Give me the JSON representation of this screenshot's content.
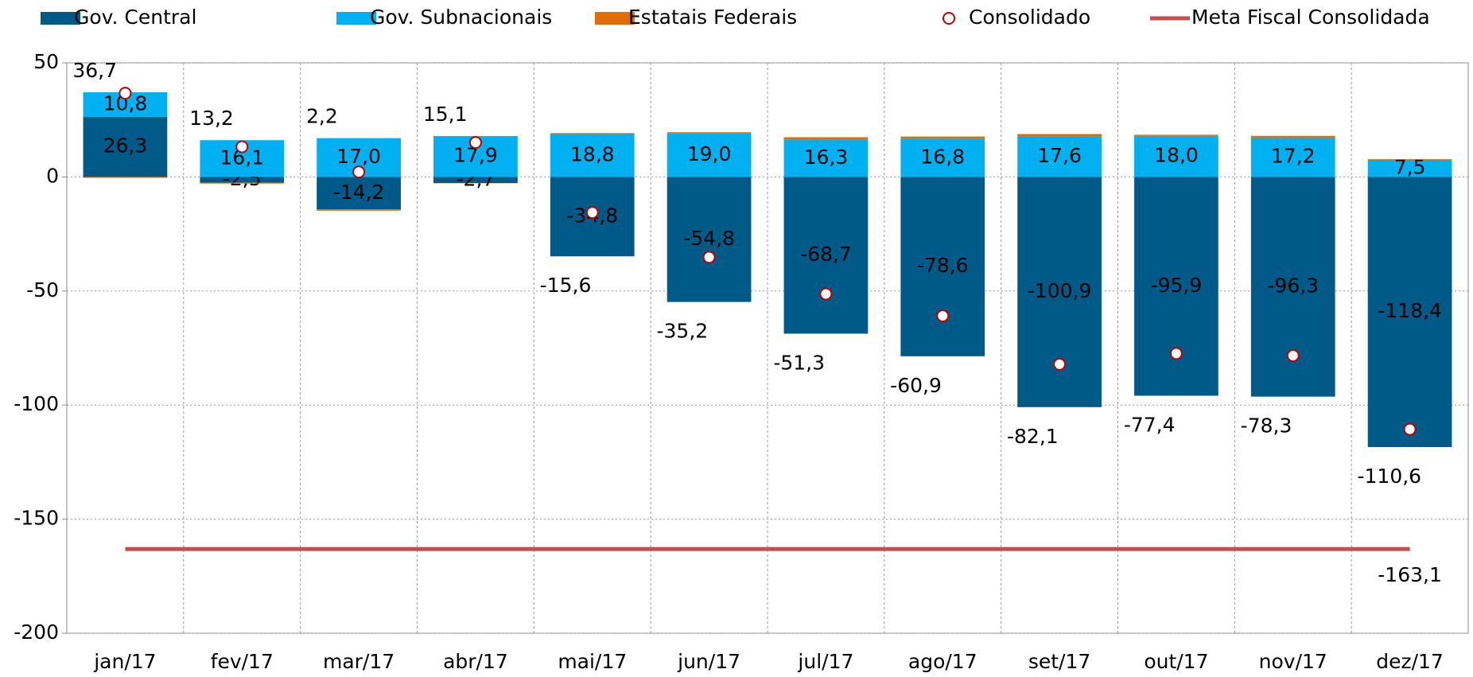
{
  "chart_data": {
    "type": "stacked-bar",
    "categories": [
      "jan/17",
      "fev/17",
      "mar/17",
      "abr/17",
      "mai/17",
      "jun/17",
      "jul/17",
      "ago/17",
      "set/17",
      "out/17",
      "nov/17",
      "dez/17"
    ],
    "series": [
      {
        "name": "Gov. Central",
        "color": "#005a87",
        "values": [
          26.3,
          -2.5,
          -14.2,
          -2.7,
          -34.8,
          -54.8,
          -68.7,
          -78.6,
          -100.9,
          -95.9,
          -96.3,
          -118.4
        ],
        "value_labels": [
          "26,3",
          "-2,5",
          "-14,2",
          "-2,7",
          "-34,8",
          "-54,8",
          "-68,7",
          "-78,6",
          "-100,9",
          "-95,9",
          "-96,3",
          "-118,4"
        ]
      },
      {
        "name": "Gov. Subnacionais",
        "color": "#00b0f0",
        "values": [
          10.8,
          16.1,
          17.0,
          17.9,
          18.8,
          19.0,
          16.3,
          16.8,
          17.6,
          18.0,
          17.2,
          7.5
        ],
        "value_labels": [
          "10,8",
          "16,1",
          "17,0",
          "17,9",
          "18,8",
          "19,0",
          "16,3",
          "16,8",
          "17,6",
          "18,0",
          "17,2",
          "7,5"
        ]
      },
      {
        "name": "Estatais Federais",
        "color": "#e36c09",
        "values": [
          -0.4,
          -0.4,
          -0.6,
          -0.1,
          0.4,
          0.6,
          1.1,
          0.9,
          1.2,
          0.5,
          0.8,
          0.3
        ]
      },
      {
        "name": "Consolidado",
        "type": "scatter",
        "color": "#c00000",
        "values": [
          36.7,
          13.2,
          2.2,
          15.1,
          -15.6,
          -35.2,
          -51.3,
          -60.9,
          -82.1,
          -77.4,
          -78.3,
          -110.6
        ],
        "value_labels": [
          "36,7",
          "13,2",
          "2,2",
          "15,1",
          "-15,6",
          "-35,2",
          "-51,3",
          "-60,9",
          "-82,1",
          "-77,4",
          "-78,3",
          "-110,6"
        ]
      },
      {
        "name": "Meta Fiscal Consolidada",
        "type": "hline",
        "color": "#c0504d",
        "value": -163.1,
        "value_label": "-163,1"
      }
    ],
    "ylim": [
      -200,
      50
    ],
    "yticks": [
      50,
      0,
      -50,
      -100,
      -150,
      -200
    ],
    "grid": true
  }
}
